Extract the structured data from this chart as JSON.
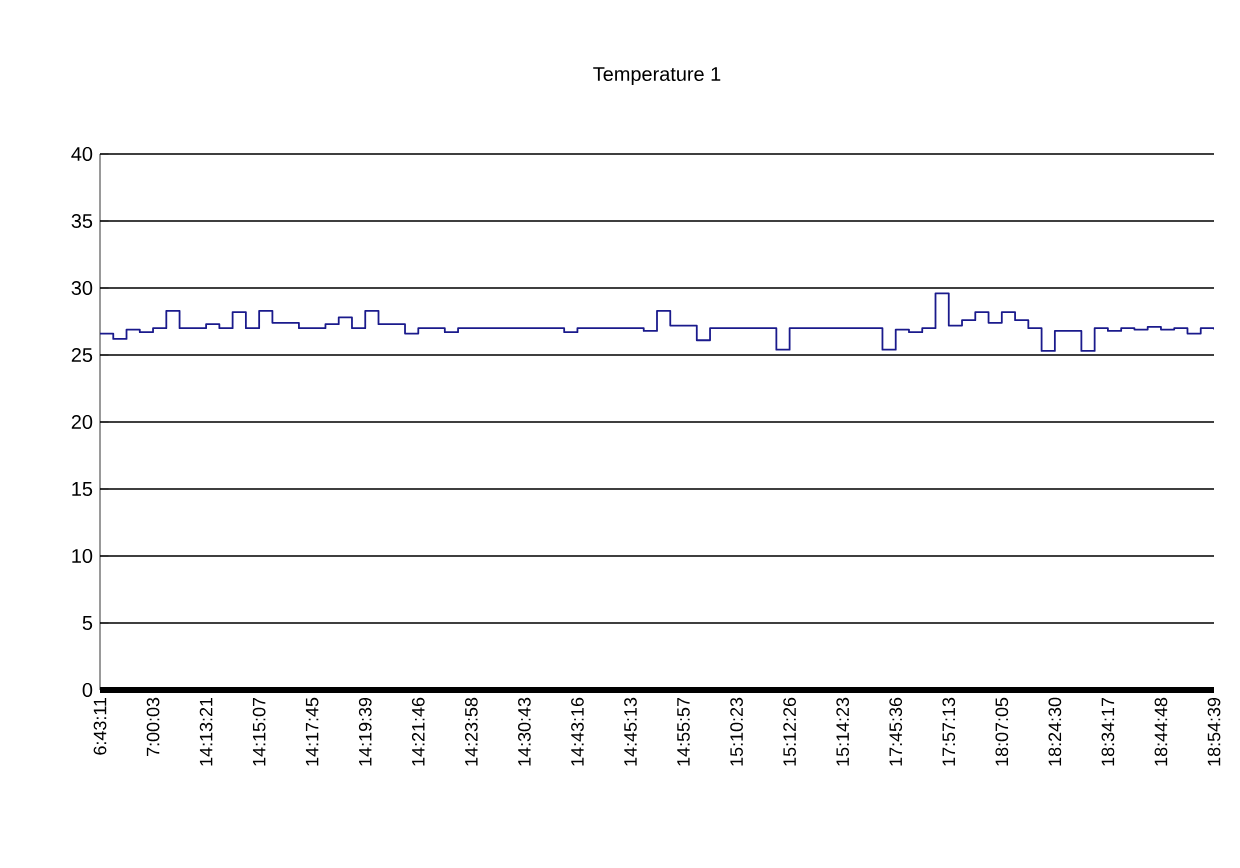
{
  "chart_data": {
    "type": "step",
    "title": "Temperature 1",
    "categories": [
      "6:43:11",
      null,
      null,
      null,
      "7:00:03",
      null,
      null,
      null,
      "14:13:21",
      null,
      null,
      null,
      "14:15:07",
      null,
      null,
      null,
      "14:17:45",
      null,
      null,
      null,
      "14:19:39",
      null,
      null,
      null,
      "14:21:46",
      null,
      null,
      null,
      "14:23:58",
      null,
      null,
      null,
      "14:30:43",
      null,
      null,
      null,
      "14:43:16",
      null,
      null,
      null,
      "14:45:13",
      null,
      null,
      null,
      "14:55:57",
      null,
      null,
      null,
      "15:10:23",
      null,
      null,
      null,
      "15:12:26",
      null,
      null,
      null,
      "15:14:23",
      null,
      null,
      null,
      "17:45:36",
      null,
      null,
      null,
      "17:57:13",
      null,
      null,
      null,
      "18:07:05",
      null,
      null,
      null,
      "18:24:30",
      null,
      null,
      null,
      "18:34:17",
      null,
      null,
      null,
      "18:44:48",
      null,
      null,
      null,
      "18:54:39"
    ],
    "series": [
      {
        "color": "#1a1a8c",
        "values": [
          26.6,
          26.2,
          26.9,
          26.7,
          27.0,
          28.3,
          27.0,
          27.0,
          27.3,
          27.0,
          28.2,
          27.0,
          28.3,
          27.4,
          27.4,
          27.0,
          27.0,
          27.3,
          27.8,
          27.0,
          28.3,
          27.3,
          27.3,
          26.6,
          27.0,
          27.0,
          26.7,
          27.0,
          27.0,
          27.0,
          27.0,
          27.0,
          27.0,
          27.0,
          27.0,
          26.7,
          27.0,
          27.0,
          27.0,
          27.0,
          27.0,
          26.8,
          28.3,
          27.2,
          27.2,
          26.1,
          27.0,
          27.0,
          27.0,
          27.0,
          27.0,
          25.4,
          27.0,
          27.0,
          27.0,
          27.0,
          27.0,
          27.0,
          27.0,
          25.4,
          26.9,
          26.7,
          27.0,
          29.6,
          27.2,
          27.6,
          28.2,
          27.4,
          28.2,
          27.6,
          27.0,
          25.3,
          26.8,
          26.8,
          25.3,
          27.0,
          26.8,
          27.0,
          26.9,
          27.1,
          26.9,
          27.0,
          26.6,
          27.0,
          26.9
        ]
      }
    ],
    "ylim": [
      0,
      40
    ],
    "yticks": [
      0,
      5,
      10,
      15,
      20,
      25,
      30,
      35,
      40
    ],
    "grid": "y",
    "marker": "none",
    "line_style": "solid"
  }
}
